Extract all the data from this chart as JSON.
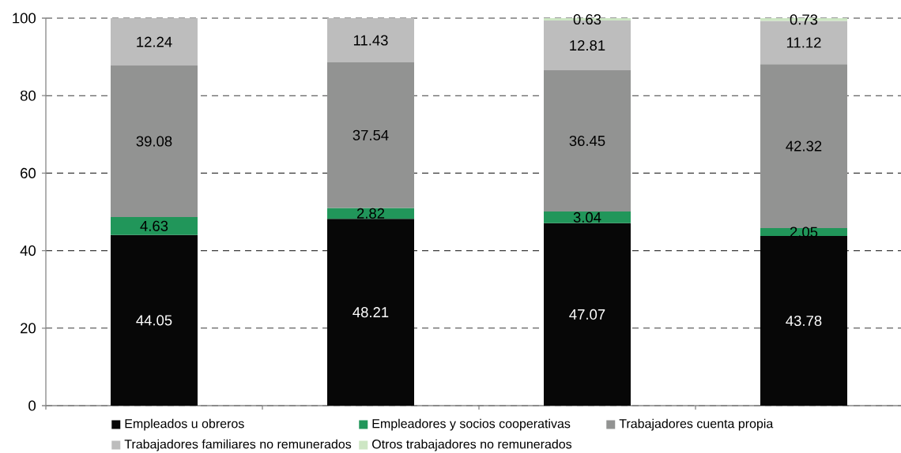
{
  "chart_data": {
    "type": "bar",
    "stacked": true,
    "categories": [
      null,
      null,
      null,
      null
    ],
    "series": [
      {
        "name": "Empleados u obreros",
        "color": "#070707",
        "values": [
          44.05,
          48.21,
          47.07,
          43.78
        ]
      },
      {
        "name": "Empleadores y socios cooperativas",
        "color": "#21965a",
        "values": [
          4.63,
          2.82,
          3.04,
          2.05
        ]
      },
      {
        "name": "Trabajadores cuenta propia",
        "color": "#929392",
        "values": [
          39.08,
          37.54,
          36.45,
          42.32
        ]
      },
      {
        "name": "Trabajadores familiares no remunerados",
        "color": "#bdbdbd",
        "values": [
          12.24,
          11.43,
          12.81,
          11.12
        ]
      },
      {
        "name": "Otros trabajadores no remunerados",
        "color": "#cde6c4",
        "values": [
          null,
          null,
          0.63,
          0.73
        ]
      }
    ],
    "ylim": [
      0,
      100
    ],
    "yticks": [
      0,
      20,
      40,
      60,
      80,
      100
    ],
    "grid": "y",
    "legend": "bottom",
    "data_labels": true
  }
}
